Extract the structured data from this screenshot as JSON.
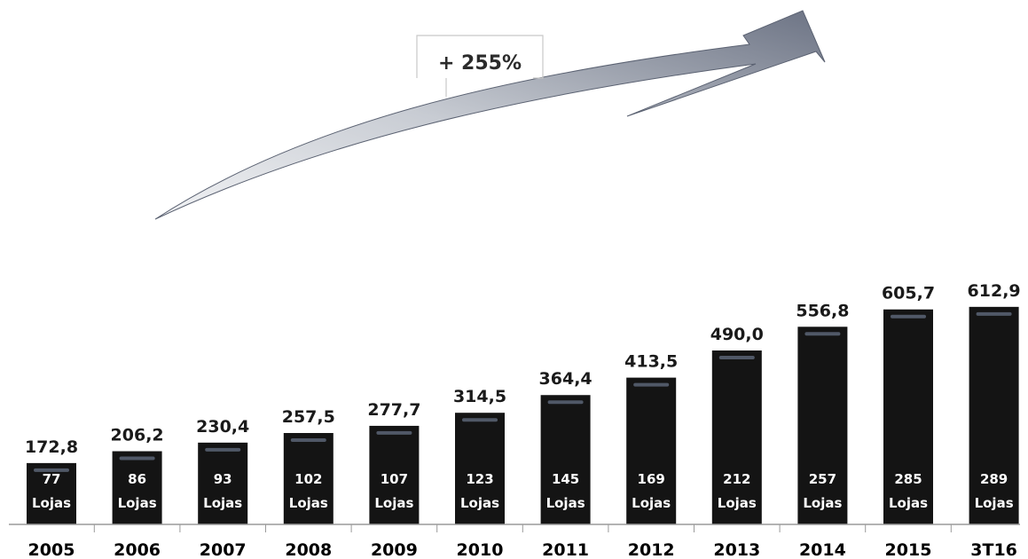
{
  "colors": {
    "bar": "#141414",
    "bar_highlight": "#5a6475",
    "arrow_light": "#e6e8ec",
    "arrow_dark": "#6c7384",
    "axis": "#9a9a9a",
    "store_text": "#ffffff"
  },
  "chart_data": {
    "type": "bar",
    "title": "",
    "xlabel": "",
    "ylabel": "",
    "ylim": [
      0,
      650
    ],
    "grid": false,
    "legend": "none",
    "categories": [
      "2005",
      "2006",
      "2007",
      "2008",
      "2009",
      "2010",
      "2011",
      "2012",
      "2013",
      "2014",
      "2015",
      "3T16"
    ],
    "values": [
      172.8,
      206.2,
      230.4,
      257.5,
      277.7,
      314.5,
      364.4,
      413.5,
      490.0,
      556.8,
      605.7,
      612.9
    ],
    "value_labels": [
      "172,8",
      "206,2",
      "230,4",
      "257,5",
      "277,7",
      "314,5",
      "364,4",
      "413,5",
      "490,0",
      "556,8",
      "605,7",
      "612,9"
    ],
    "store_counts": [
      "77",
      "86",
      "93",
      "102",
      "107",
      "123",
      "145",
      "169",
      "212",
      "257",
      "285",
      "289"
    ],
    "store_unit": "Lojas",
    "annotation": "+ 255%"
  }
}
